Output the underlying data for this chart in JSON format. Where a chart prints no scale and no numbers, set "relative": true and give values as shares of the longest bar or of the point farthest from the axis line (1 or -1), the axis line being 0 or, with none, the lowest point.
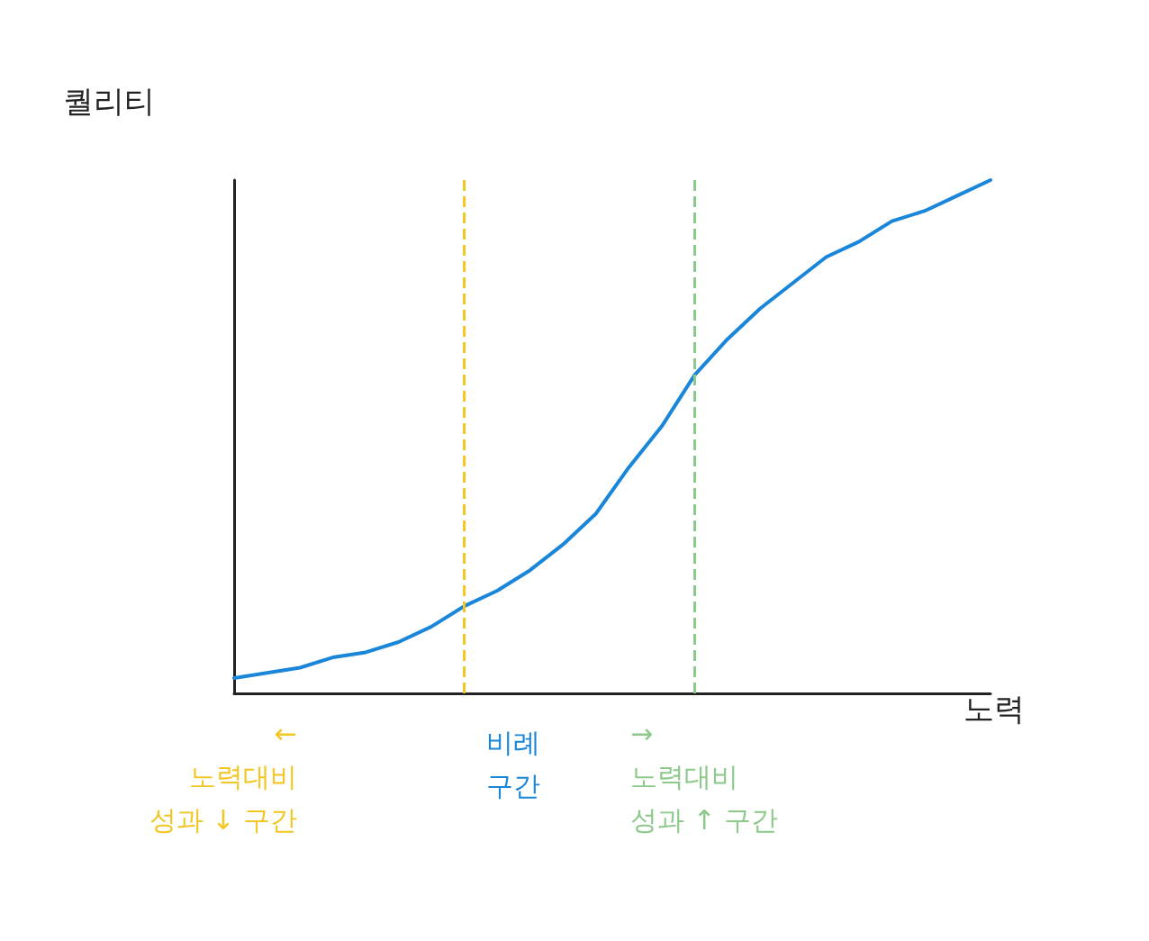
{
  "chart_data": {
    "type": "line",
    "xlabel": "노력",
    "ylabel": "퀄리티",
    "relative": true,
    "categories": [
      null,
      null,
      null,
      null,
      null,
      null,
      null,
      null,
      null,
      null,
      null,
      null,
      null,
      null,
      null,
      null,
      null,
      null,
      null,
      null,
      null,
      null,
      null,
      null
    ],
    "series": [
      {
        "color": "#1a86d9",
        "values": [
          0.03,
          0.04,
          0.05,
          0.07,
          0.08,
          0.1,
          0.13,
          0.17,
          0.2,
          0.24,
          0.29,
          0.35,
          0.44,
          0.52,
          0.62,
          0.69,
          0.75,
          0.8,
          0.85,
          0.88,
          0.92,
          0.94,
          0.97,
          1
        ]
      }
    ],
    "annotations": [
      "←\n노력대비\n성과 ↓ 구간",
      "비례\n구간",
      "→\n노력대비\n성과 ↑ 구간"
    ],
    "grid": false,
    "marker": "none",
    "line_style": "solid"
  }
}
